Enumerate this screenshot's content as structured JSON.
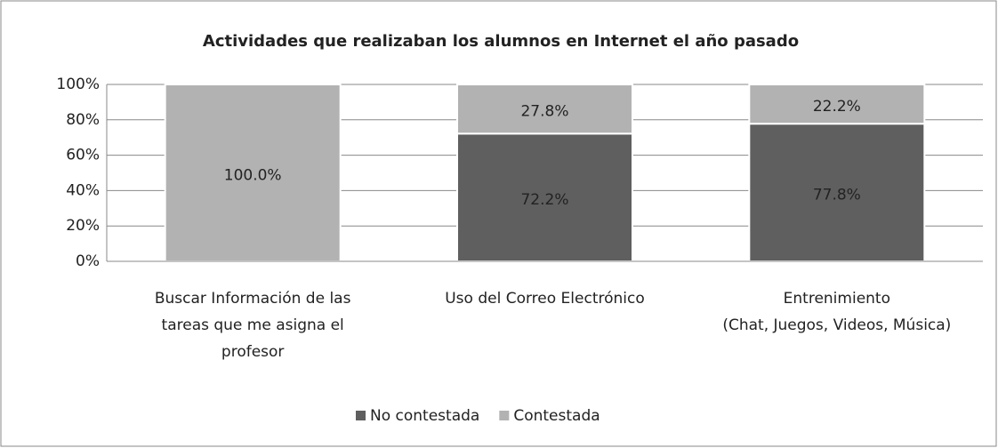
{
  "chart_data": {
    "type": "stacked_bar",
    "title": "Actividades que realizaban los alumnos en Internet el año pasado",
    "categories": [
      [
        "Buscar Información de las",
        "tareas que me asigna el",
        "profesor"
      ],
      [
        "Uso del Correo Electrónico"
      ],
      [
        "Entrenimiento",
        "(Chat, Juegos, Videos, Música)"
      ]
    ],
    "series": [
      {
        "name": "No contestada",
        "color": "#5f5f5f",
        "values": [
          0,
          72.2,
          77.8
        ],
        "value_labels": [
          null,
          "72.2%",
          "77.8%"
        ]
      },
      {
        "name": "Contestada",
        "color": "#b2b2b2",
        "values": [
          100,
          27.8,
          22.2
        ],
        "value_labels": [
          "100.0%",
          "27.8%",
          "22.2%"
        ]
      }
    ],
    "ylim": [
      0,
      100
    ],
    "yticks": [
      {
        "value": 0,
        "label": "0%"
      },
      {
        "value": 20,
        "label": "20%"
      },
      {
        "value": 40,
        "label": "40%"
      },
      {
        "value": 60,
        "label": "60%"
      },
      {
        "value": 80,
        "label": "80%"
      },
      {
        "value": 100,
        "label": "100%"
      }
    ],
    "grid": true,
    "legend": "bottom"
  }
}
